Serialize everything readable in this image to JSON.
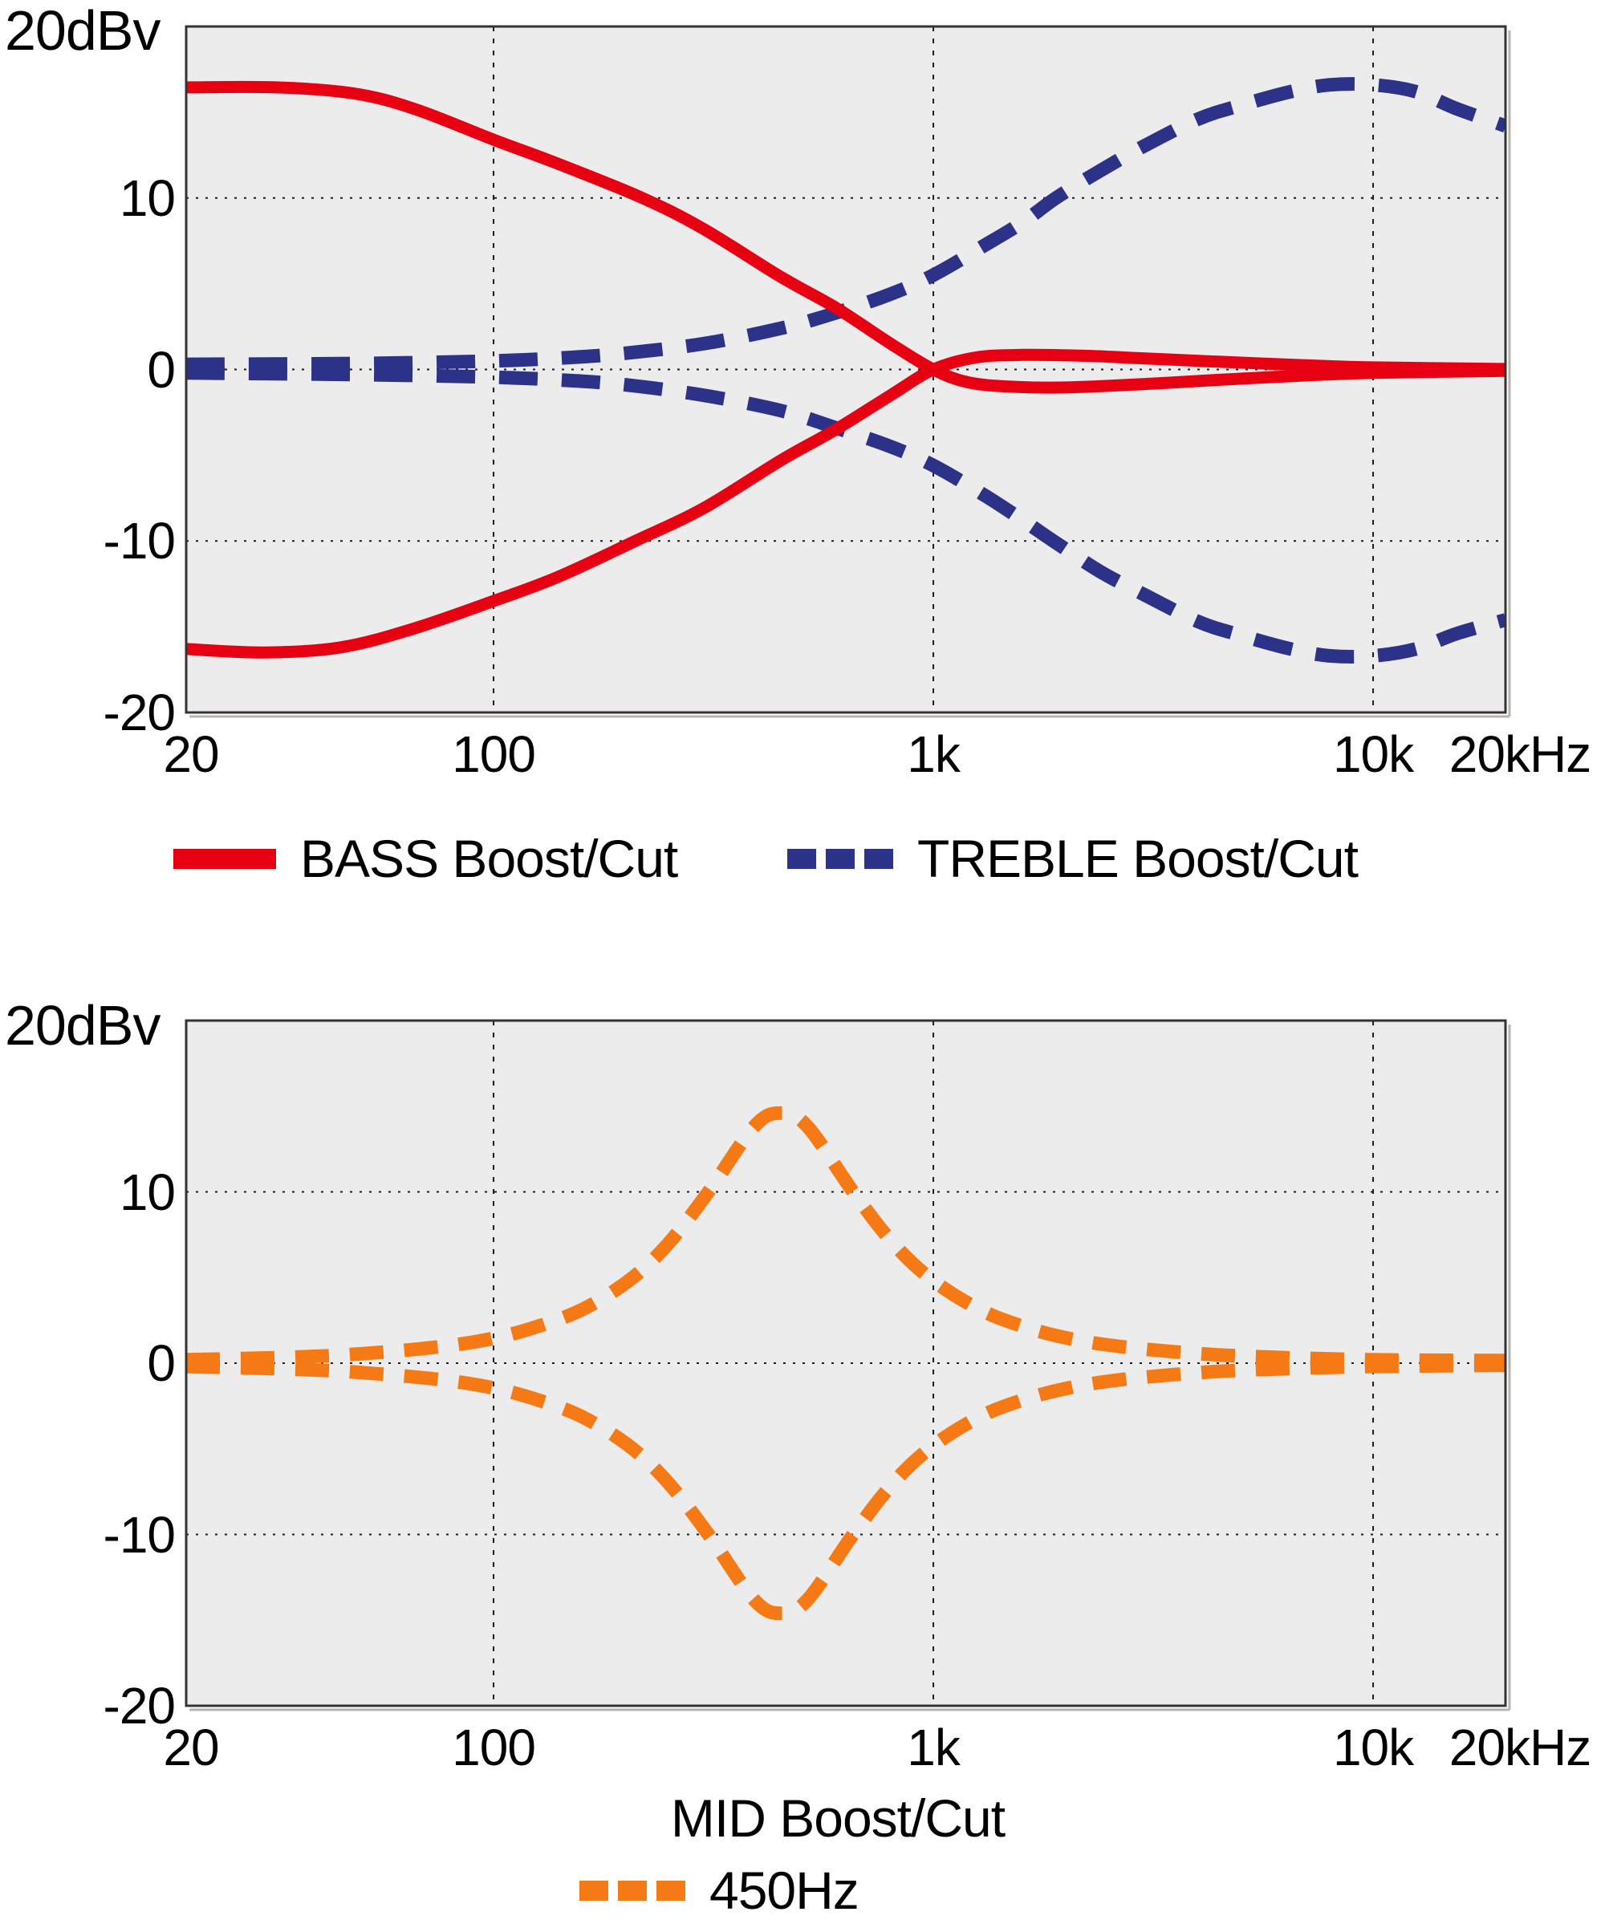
{
  "colors": {
    "bass_red": "#e60012",
    "treble_navy": "#2b3287",
    "mid_orange": "#f57a15",
    "plot_bg": "#ececec",
    "frame": "#333333",
    "frame_shadow": "#b7b1ab",
    "grid": "#1c1c1c",
    "text": "#000000",
    "page_bg": "#ffffff"
  },
  "chart_data": [
    {
      "type": "line",
      "x_scale": "log",
      "xlim": [
        20,
        20000
      ],
      "ylim": [
        -20,
        20
      ],
      "grid_on": true,
      "legend_position": "below",
      "y_unit_label": "20dBv",
      "xticks": [
        {
          "v": 20,
          "label": "20"
        },
        {
          "v": 100,
          "label": "100"
        },
        {
          "v": 1000,
          "label": "1k"
        },
        {
          "v": 10000,
          "label": "10k"
        },
        {
          "v": 20000,
          "label": "20kHz"
        }
      ],
      "yticks": [
        {
          "v": 10,
          "label": "10"
        },
        {
          "v": 0,
          "label": "0"
        },
        {
          "v": -10,
          "label": "-10"
        },
        {
          "v": -20,
          "label": "-20"
        }
      ],
      "grid": {
        "x": [
          100,
          1000,
          10000
        ],
        "y": [
          10,
          0,
          -10
        ]
      },
      "legend": [
        {
          "label": "BASS Boost/Cut",
          "swatch": "solid",
          "color": "bass_red"
        },
        {
          "label": "TREBLE Boost/Cut",
          "swatch": "dashed",
          "color": "treble_navy"
        }
      ],
      "series": [
        {
          "name": "TREBLE Boost",
          "style": "dashed",
          "color": "treble_navy",
          "points": [
            [
              20,
              0.3
            ],
            [
              50,
              0.35
            ],
            [
              100,
              0.5
            ],
            [
              150,
              0.7
            ],
            [
              200,
              0.95
            ],
            [
              300,
              1.5
            ],
            [
              450,
              2.4
            ],
            [
              600,
              3.3
            ],
            [
              800,
              4.4
            ],
            [
              1000,
              5.5
            ],
            [
              1300,
              7.2
            ],
            [
              1600,
              8.6
            ],
            [
              1900,
              10
            ],
            [
              2400,
              11.6
            ],
            [
              3000,
              13
            ],
            [
              4000,
              14.6
            ],
            [
              5000,
              15.4
            ],
            [
              6500,
              16.2
            ],
            [
              8000,
              16.6
            ],
            [
              10000,
              16.6
            ],
            [
              12500,
              16.2
            ],
            [
              15500,
              15.2
            ],
            [
              20000,
              14.2
            ]
          ]
        },
        {
          "name": "TREBLE Cut",
          "style": "dashed",
          "color": "treble_navy",
          "points": [
            [
              20,
              -0.2
            ],
            [
              50,
              -0.3
            ],
            [
              100,
              -0.45
            ],
            [
              150,
              -0.65
            ],
            [
              200,
              -0.9
            ],
            [
              300,
              -1.5
            ],
            [
              450,
              -2.4
            ],
            [
              600,
              -3.4
            ],
            [
              800,
              -4.5
            ],
            [
              1000,
              -5.6
            ],
            [
              1300,
              -7.3
            ],
            [
              1600,
              -8.8
            ],
            [
              1900,
              -10.1
            ],
            [
              2400,
              -11.8
            ],
            [
              3000,
              -13.1
            ],
            [
              4000,
              -14.7
            ],
            [
              5000,
              -15.5
            ],
            [
              6500,
              -16.3
            ],
            [
              8000,
              -16.7
            ],
            [
              10000,
              -16.7
            ],
            [
              12500,
              -16.3
            ],
            [
              15500,
              -15.4
            ],
            [
              20000,
              -14.6
            ]
          ]
        },
        {
          "name": "BASS Boost",
          "style": "solid",
          "color": "bass_red",
          "points": [
            [
              20,
              16.45
            ],
            [
              32,
              16.45
            ],
            [
              48,
              16.1
            ],
            [
              66,
              15.2
            ],
            [
              100,
              13.4
            ],
            [
              140,
              12
            ],
            [
              218,
              10
            ],
            [
              300,
              8.2
            ],
            [
              450,
              5.4
            ],
            [
              600,
              3.6
            ],
            [
              800,
              1.5
            ],
            [
              1000,
              0
            ],
            [
              1200,
              -0.75
            ],
            [
              1500,
              -1
            ],
            [
              2000,
              -1.05
            ],
            [
              3000,
              -0.85
            ],
            [
              4500,
              -0.6
            ],
            [
              7000,
              -0.35
            ],
            [
              10000,
              -0.2
            ],
            [
              20000,
              -0.08
            ]
          ]
        },
        {
          "name": "BASS Cut",
          "style": "solid",
          "color": "bass_red",
          "points": [
            [
              20,
              -16.3
            ],
            [
              30,
              -16.5
            ],
            [
              45,
              -16.2
            ],
            [
              66,
              -15.1
            ],
            [
              100,
              -13.5
            ],
            [
              140,
              -12.1
            ],
            [
              210,
              -10
            ],
            [
              300,
              -8.1
            ],
            [
              450,
              -5.3
            ],
            [
              600,
              -3.5
            ],
            [
              800,
              -1.5
            ],
            [
              1000,
              0
            ],
            [
              1250,
              0.7
            ],
            [
              1600,
              0.85
            ],
            [
              2200,
              0.8
            ],
            [
              3000,
              0.65
            ],
            [
              4500,
              0.45
            ],
            [
              7000,
              0.25
            ],
            [
              10000,
              0.12
            ],
            [
              20000,
              0.03
            ]
          ]
        }
      ]
    },
    {
      "type": "line",
      "x_scale": "log",
      "xlim": [
        20,
        20000
      ],
      "ylim": [
        -20,
        20
      ],
      "grid_on": true,
      "legend_position": "below",
      "y_unit_label": "20dBv",
      "caption": "MID Boost/Cut",
      "xticks": [
        {
          "v": 20,
          "label": "20"
        },
        {
          "v": 100,
          "label": "100"
        },
        {
          "v": 1000,
          "label": "1k"
        },
        {
          "v": 10000,
          "label": "10k"
        },
        {
          "v": 20000,
          "label": "20kHz"
        }
      ],
      "yticks": [
        {
          "v": 10,
          "label": "10"
        },
        {
          "v": 0,
          "label": "0"
        },
        {
          "v": -10,
          "label": "-10"
        },
        {
          "v": -20,
          "label": "-20"
        }
      ],
      "grid": {
        "x": [
          100,
          1000,
          10000
        ],
        "y": [
          10,
          0,
          -10
        ]
      },
      "legend": [
        {
          "label": "450Hz",
          "swatch": "dashed",
          "color": "mid_orange"
        }
      ],
      "series": [
        {
          "name": "MID Boost 450Hz",
          "style": "dashed",
          "color": "mid_orange",
          "points": [
            [
              20,
              0.2
            ],
            [
              35,
              0.35
            ],
            [
              50,
              0.55
            ],
            [
              75,
              0.95
            ],
            [
              100,
              1.45
            ],
            [
              128,
              2.2
            ],
            [
              161,
              3.2
            ],
            [
              205,
              4.9
            ],
            [
              250,
              7
            ],
            [
              308,
              10
            ],
            [
              391,
              13.8
            ],
            [
              450,
              14.6
            ],
            [
              518,
              13.8
            ],
            [
              657,
              10
            ],
            [
              810,
              7
            ],
            [
              990,
              4.9
            ],
            [
              1260,
              3.2
            ],
            [
              1575,
              2.2
            ],
            [
              2025,
              1.45
            ],
            [
              2700,
              0.95
            ],
            [
              4050,
              0.55
            ],
            [
              5850,
              0.35
            ],
            [
              9900,
              0.2
            ],
            [
              20000,
              0.15
            ]
          ]
        },
        {
          "name": "MID Cut 450Hz",
          "style": "dashed",
          "color": "mid_orange",
          "points": [
            [
              20,
              -0.2
            ],
            [
              35,
              -0.35
            ],
            [
              50,
              -0.55
            ],
            [
              75,
              -0.95
            ],
            [
              100,
              -1.45
            ],
            [
              128,
              -2.2
            ],
            [
              161,
              -3.2
            ],
            [
              205,
              -4.9
            ],
            [
              250,
              -7
            ],
            [
              308,
              -10
            ],
            [
              391,
              -13.8
            ],
            [
              450,
              -14.6
            ],
            [
              518,
              -13.8
            ],
            [
              657,
              -10
            ],
            [
              810,
              -7
            ],
            [
              990,
              -4.9
            ],
            [
              1260,
              -3.2
            ],
            [
              1575,
              -2.2
            ],
            [
              2025,
              -1.45
            ],
            [
              2700,
              -0.95
            ],
            [
              4050,
              -0.55
            ],
            [
              5850,
              -0.35
            ],
            [
              9900,
              -0.2
            ],
            [
              20000,
              -0.12
            ]
          ]
        }
      ]
    }
  ]
}
